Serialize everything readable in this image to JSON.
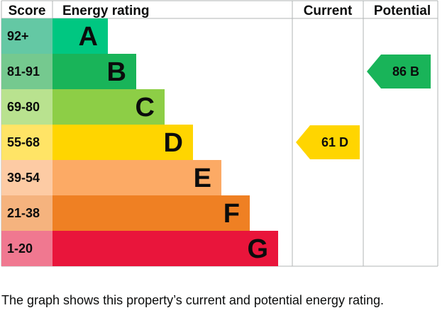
{
  "chart_data": {
    "type": "bar",
    "headers": {
      "score": "Score",
      "rating": "Energy rating",
      "current": "Current",
      "potential": "Potential"
    },
    "bands": [
      {
        "letter": "A",
        "range": "92+",
        "color": "#00c781",
        "score_bg": "#64c8a4"
      },
      {
        "letter": "B",
        "range": "81-91",
        "color": "#19b459",
        "score_bg": "#75c98f"
      },
      {
        "letter": "C",
        "range": "69-80",
        "color": "#8dce46",
        "score_bg": "#b9e28f"
      },
      {
        "letter": "D",
        "range": "55-68",
        "color": "#ffd500",
        "score_bg": "#ffe466"
      },
      {
        "letter": "E",
        "range": "39-54",
        "color": "#fcaa65",
        "score_bg": "#fdcba4"
      },
      {
        "letter": "F",
        "range": "21-38",
        "color": "#ef8023",
        "score_bg": "#f5b37e"
      },
      {
        "letter": "G",
        "range": "1-20",
        "color": "#e9153b",
        "score_bg": "#f07890"
      }
    ],
    "current": {
      "score": 61,
      "band": "D",
      "label": "61 D"
    },
    "potential": {
      "score": 86,
      "band": "B",
      "label": "86 B"
    }
  },
  "caption": "The graph shows this property’s current and potential energy rating.",
  "colors": {
    "grid": "#b1b4b6",
    "text": "#0b0c0c"
  }
}
